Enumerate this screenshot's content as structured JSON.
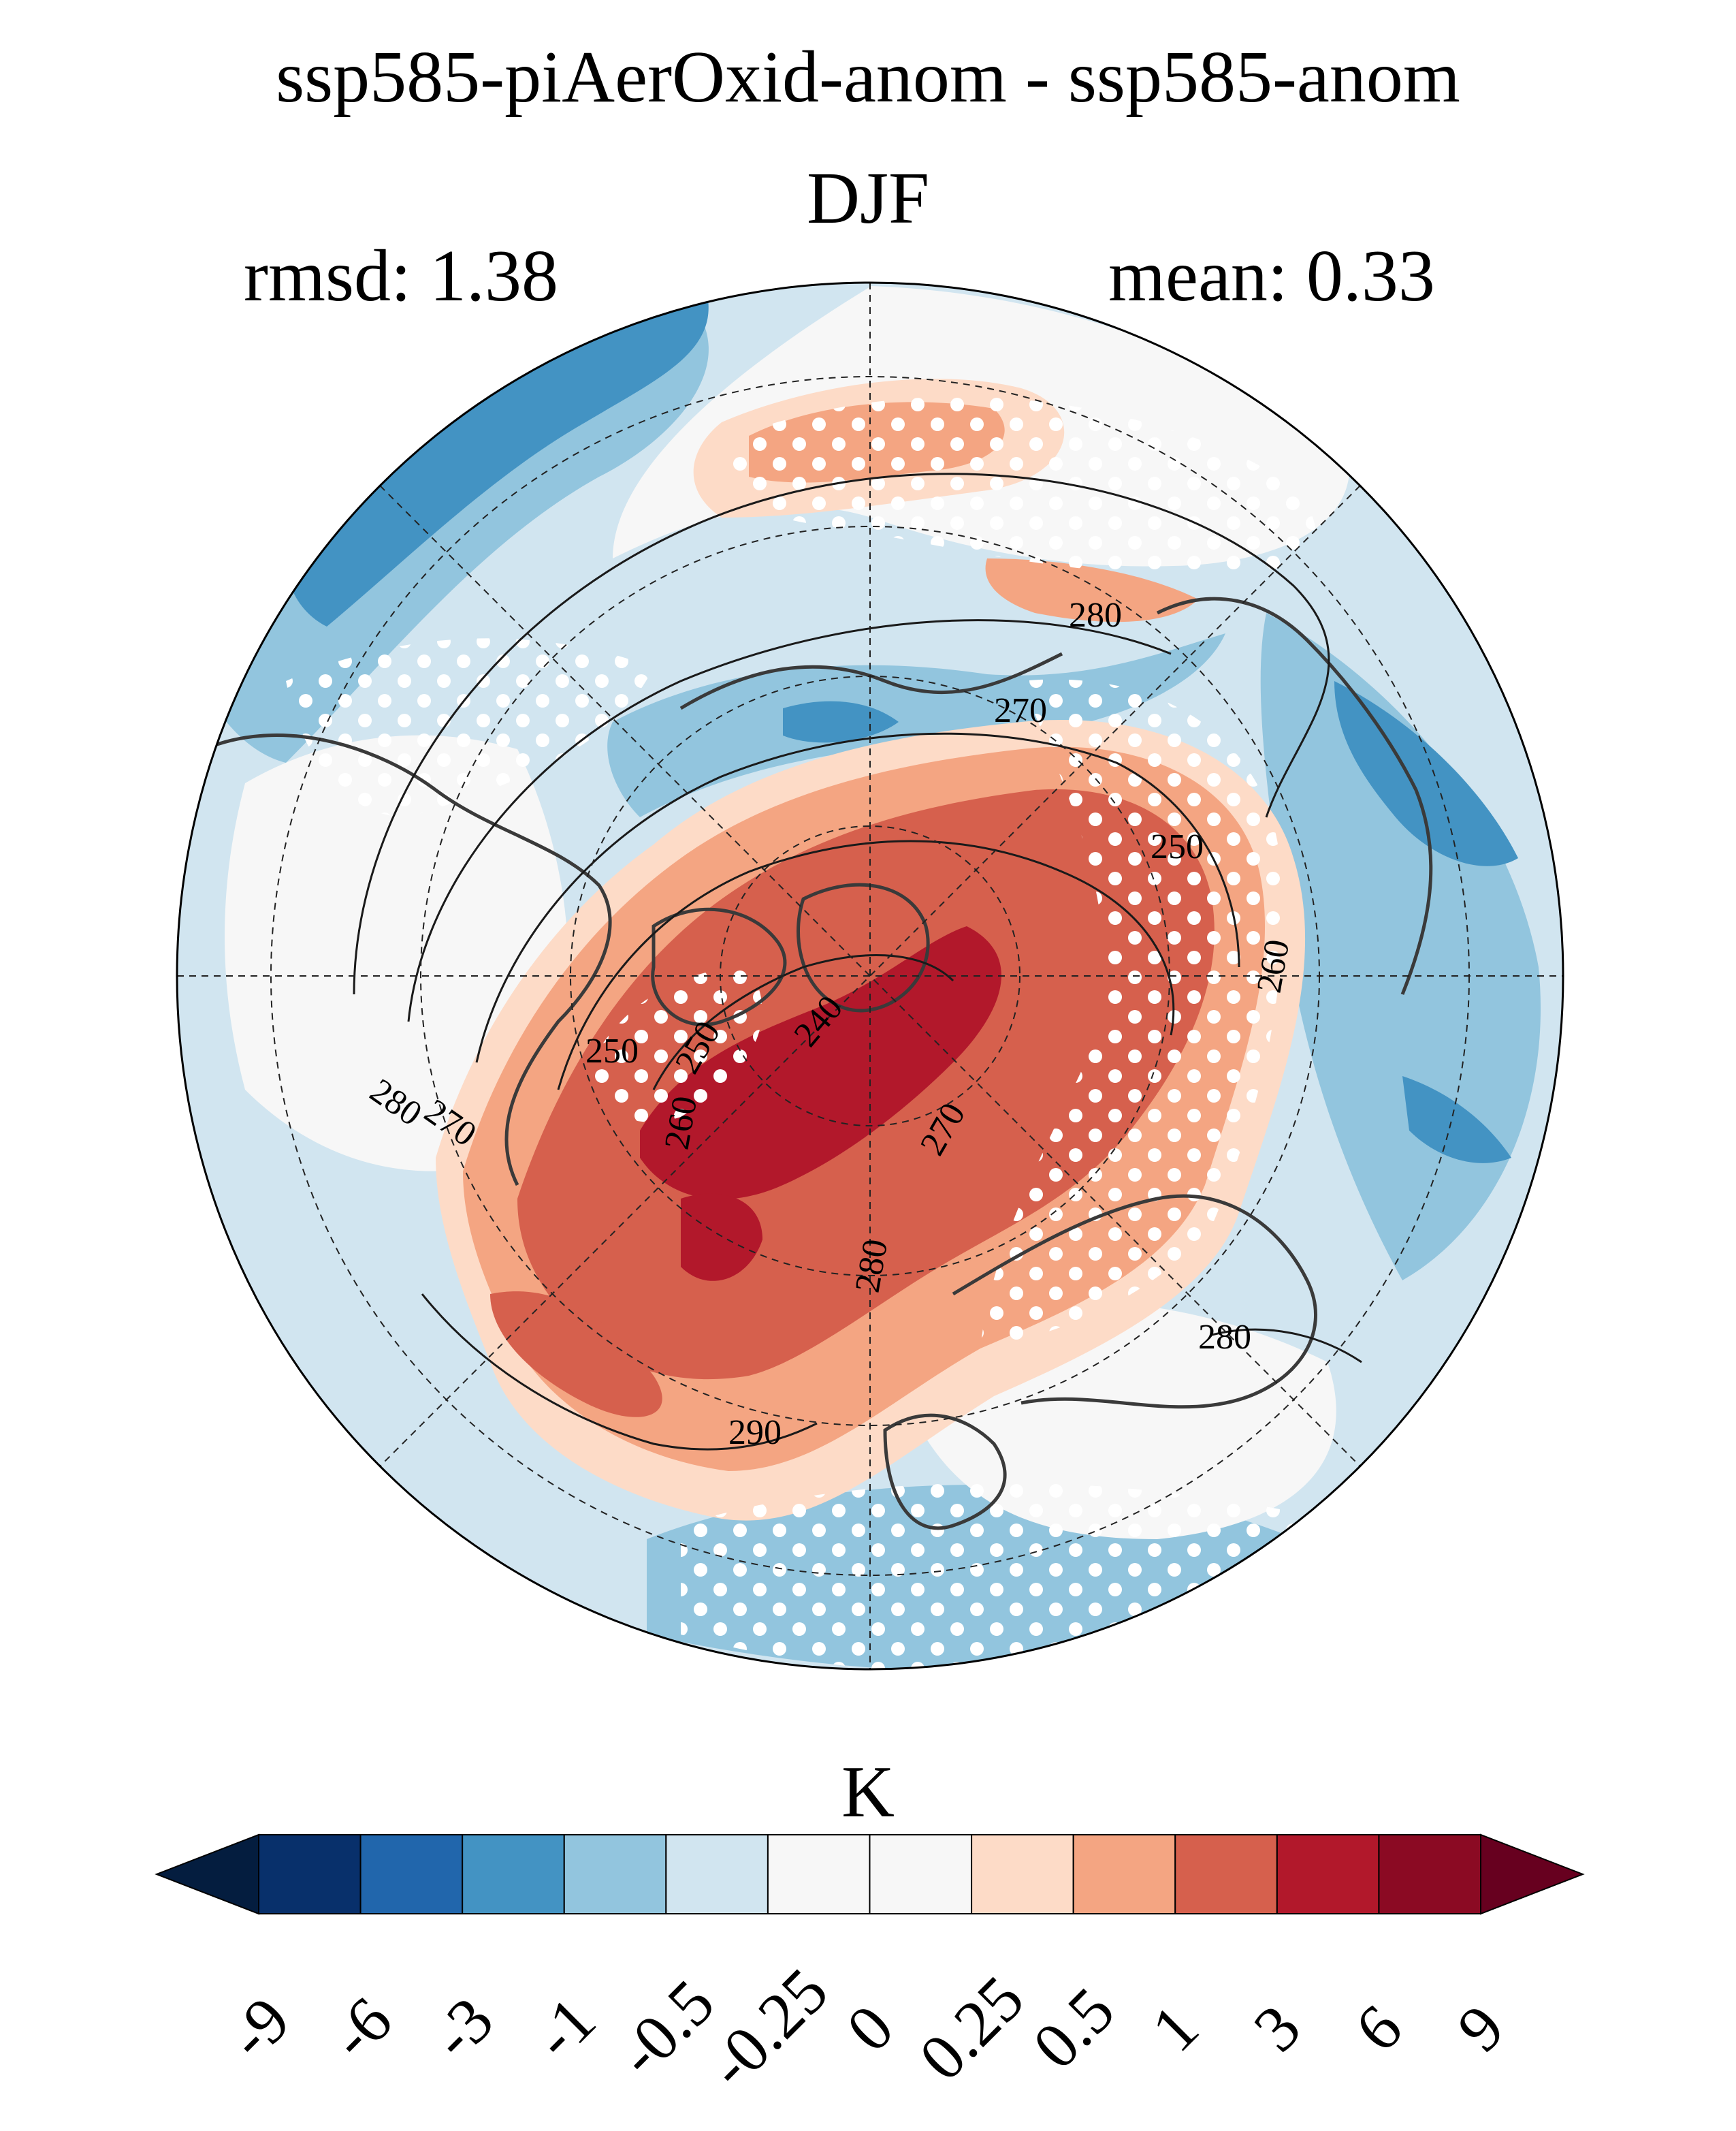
{
  "figure": {
    "title": "ssp585-piAerOxid-anom - ssp585-anom",
    "season": "DJF",
    "rmsd_label": "rmsd: 1.38",
    "mean_label": "mean: 0.33"
  },
  "map": {
    "projection": "north-polar-stereographic",
    "contour_labels": [
      "280",
      "270",
      "250",
      "260",
      "280",
      "280",
      "270",
      "250",
      "240",
      "250",
      "270",
      "260",
      "280",
      "290"
    ],
    "stippling": "significance dots (white)",
    "colors": {
      "deep_red": "#b2182b",
      "red": "#d6604d",
      "light_red": "#f4a582",
      "pale_red": "#fddbc7",
      "neutral": "#f7f7f7",
      "pale_blue": "#d1e5f0",
      "light_blue": "#92c5de",
      "blue": "#4393c3",
      "deep_blue": "#2166ac"
    }
  },
  "colorbar": {
    "unit": "K",
    "tick_labels": [
      "-9",
      "-6",
      "-3",
      "-1",
      "-0.5",
      "-0.25",
      "0",
      "0.25",
      "0.5",
      "1",
      "3",
      "6",
      "9"
    ],
    "bins": [
      {
        "color": "#08306b"
      },
      {
        "color": "#2166ac"
      },
      {
        "color": "#4393c3"
      },
      {
        "color": "#92c5de"
      },
      {
        "color": "#d1e5f0"
      },
      {
        "color": "#f7f7f7"
      },
      {
        "color": "#f7f7f7"
      },
      {
        "color": "#fddbc7"
      },
      {
        "color": "#f4a582"
      },
      {
        "color": "#d6604d"
      },
      {
        "color": "#b2182b"
      },
      {
        "color": "#8b0a23"
      }
    ],
    "extend_low_color": "#041d3f",
    "extend_high_color": "#67001f"
  }
}
